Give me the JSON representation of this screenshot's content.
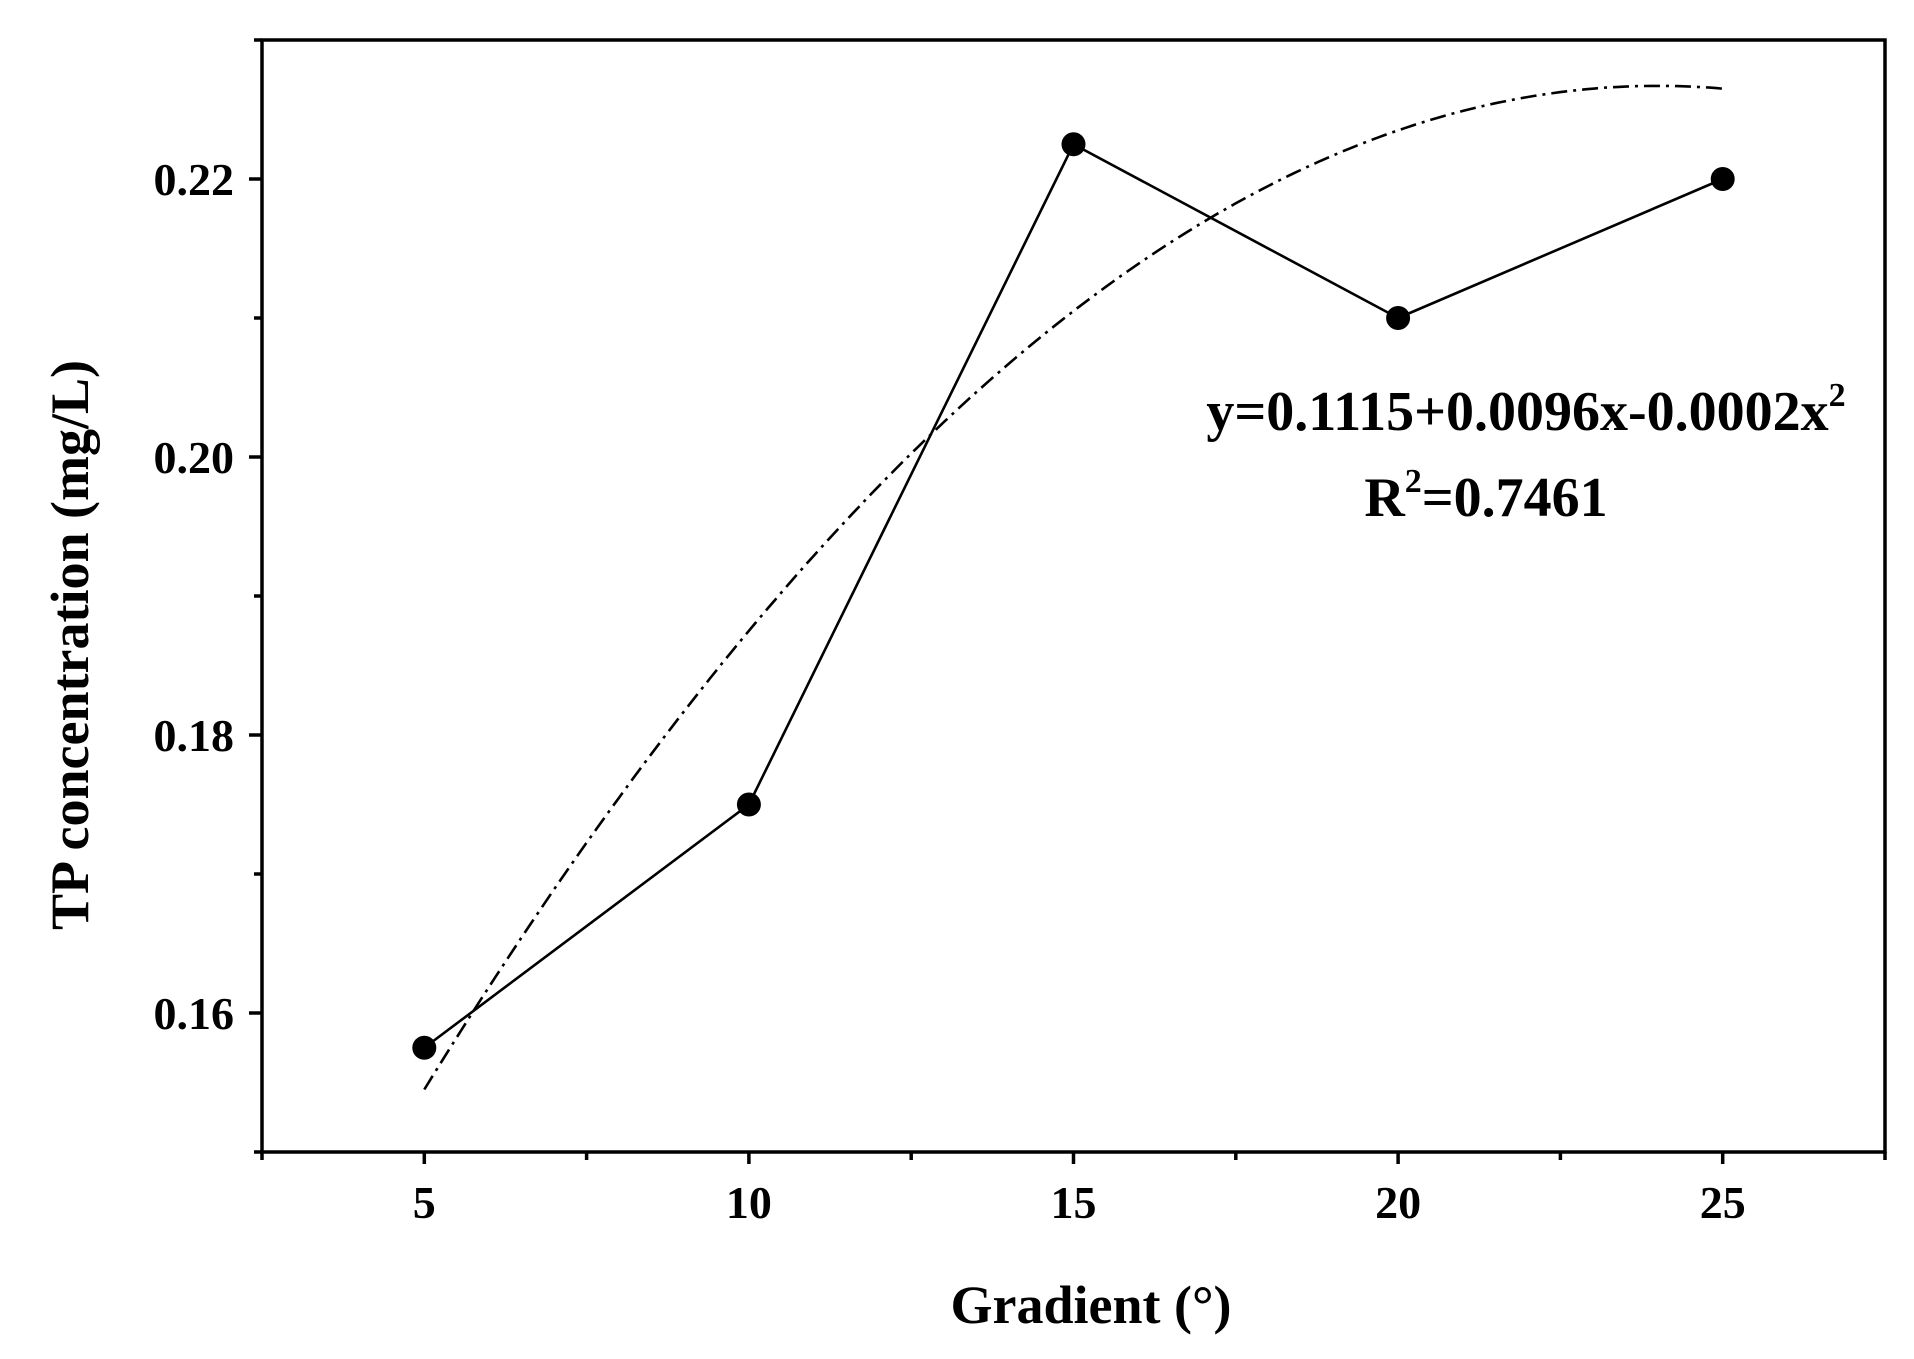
{
  "chart_data": {
    "type": "line",
    "title": "",
    "xlabel": "Gradient (°)",
    "ylabel": "TP concentration (mg/L)",
    "xlim": [
      2.5,
      27.5
    ],
    "ylim": [
      0.15,
      0.23
    ],
    "x_ticks": [
      5,
      10,
      15,
      20,
      25
    ],
    "x_tick_labels": [
      "5",
      "10",
      "15",
      "20",
      "25"
    ],
    "x_minor_ticks": [
      2.5,
      7.5,
      12.5,
      17.5,
      22.5,
      27.5
    ],
    "y_ticks": [
      0.16,
      0.18,
      0.2,
      0.22
    ],
    "y_tick_labels": [
      "0.16",
      "0.18",
      "0.20",
      "0.22"
    ],
    "y_minor_ticks": [
      0.15,
      0.17,
      0.19,
      0.21,
      0.23
    ],
    "grid": false,
    "legend": "none",
    "series": [
      {
        "x": [
          5,
          10,
          15,
          20,
          25
        ],
        "values": [
          0.1575,
          0.175,
          0.2225,
          0.21,
          0.22
        ],
        "style": "solid line with filled circle markers",
        "color": "#000000"
      }
    ],
    "fit": {
      "type": "quadratic",
      "intercept": 0.1115,
      "b1": 0.0096,
      "b2": -0.0002,
      "x_range": [
        5,
        25
      ],
      "style": "dash-dot",
      "color": "#000000"
    },
    "annotations": {
      "equation": {
        "main": "y=0.1115+0.0096x-0.0002x",
        "sup": "2"
      },
      "r2": {
        "prefix": "R",
        "sup": "2",
        "suffix": "=0.7461"
      }
    }
  }
}
